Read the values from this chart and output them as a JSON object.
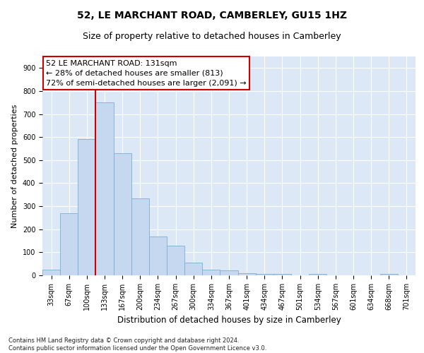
{
  "title": "52, LE MARCHANT ROAD, CAMBERLEY, GU15 1HZ",
  "subtitle": "Size of property relative to detached houses in Camberley",
  "xlabel": "Distribution of detached houses by size in Camberley",
  "ylabel": "Number of detached properties",
  "footnote": "Contains HM Land Registry data © Crown copyright and database right 2024.\nContains public sector information licensed under the Open Government Licence v3.0.",
  "categories": [
    "33sqm",
    "67sqm",
    "100sqm",
    "133sqm",
    "167sqm",
    "200sqm",
    "234sqm",
    "267sqm",
    "300sqm",
    "334sqm",
    "367sqm",
    "401sqm",
    "434sqm",
    "467sqm",
    "501sqm",
    "534sqm",
    "567sqm",
    "601sqm",
    "634sqm",
    "668sqm",
    "701sqm"
  ],
  "bar_values": [
    25,
    270,
    590,
    750,
    530,
    335,
    170,
    130,
    55,
    25,
    20,
    10,
    5,
    5,
    0,
    5,
    0,
    0,
    0,
    5,
    0
  ],
  "bar_color": "#c5d8f0",
  "bar_edge_color": "#7badd4",
  "property_line_color": "#cc0000",
  "annotation_text_line1": "52 LE MARCHANT ROAD: 131sqm",
  "annotation_text_line2": "← 28% of detached houses are smaller (813)",
  "annotation_text_line3": "72% of semi-detached houses are larger (2,091) →",
  "ylim": [
    0,
    950
  ],
  "yticks": [
    0,
    100,
    200,
    300,
    400,
    500,
    600,
    700,
    800,
    900
  ],
  "background_color": "#ffffff",
  "plot_bg_color": "#dce8f5",
  "grid_color": "#ffffff",
  "title_fontsize": 10,
  "subtitle_fontsize": 9,
  "xlabel_fontsize": 8.5,
  "ylabel_fontsize": 8,
  "tick_fontsize": 7,
  "annotation_fontsize": 8,
  "footnote_fontsize": 6
}
